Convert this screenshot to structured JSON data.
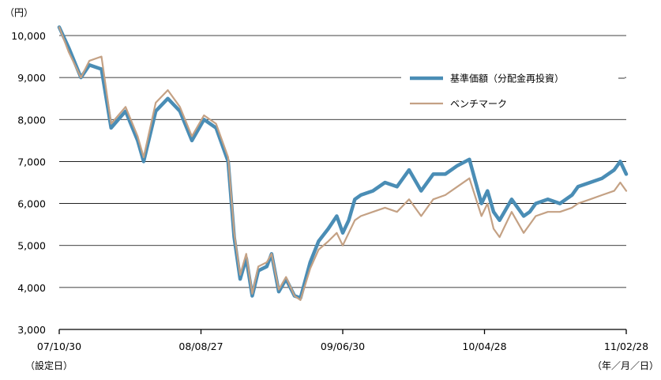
{
  "chart_data": {
    "type": "line",
    "y_unit": "（円）",
    "x_unit": "（年／月／日）",
    "x_tick_sublabel": "（設定日）",
    "ylim": [
      3000,
      10000
    ],
    "y_ticks": [
      {
        "value": 3000,
        "label": "3,000"
      },
      {
        "value": 4000,
        "label": "4,000"
      },
      {
        "value": 5000,
        "label": "5,000"
      },
      {
        "value": 6000,
        "label": "6,000"
      },
      {
        "value": 7000,
        "label": "7,000"
      },
      {
        "value": 8000,
        "label": "8,000"
      },
      {
        "value": 9000,
        "label": "9,000"
      },
      {
        "value": 10000,
        "label": "10,000"
      }
    ],
    "grid": "horizontal",
    "legend_position": "top-right",
    "x_ticks": [
      "07/10/30",
      "08/08/27",
      "09/06/30",
      "10/04/28",
      "11/02/28"
    ],
    "series": [
      {
        "name": "基準価額（分配金再投資）",
        "color": "#4a8db5",
        "points": [
          [
            0,
            10200
          ],
          [
            0.8,
            9700
          ],
          [
            1.8,
            9000
          ],
          [
            2.5,
            9300
          ],
          [
            3.5,
            9200
          ],
          [
            4.3,
            7800
          ],
          [
            5.5,
            8200
          ],
          [
            6.5,
            7500
          ],
          [
            7.0,
            7000
          ],
          [
            8.0,
            8200
          ],
          [
            9.0,
            8500
          ],
          [
            10.0,
            8200
          ],
          [
            11.0,
            7500
          ],
          [
            12.0,
            8000
          ],
          [
            13.0,
            7800
          ],
          [
            14.0,
            7000
          ],
          [
            14.5,
            5200
          ],
          [
            15.0,
            4200
          ],
          [
            15.5,
            4700
          ],
          [
            16.0,
            3800
          ],
          [
            16.5,
            4400
          ],
          [
            17.2,
            4500
          ],
          [
            17.6,
            4800
          ],
          [
            18.2,
            3900
          ],
          [
            18.8,
            4200
          ],
          [
            19.5,
            3800
          ],
          [
            20.0,
            3750
          ],
          [
            20.8,
            4600
          ],
          [
            21.5,
            5100
          ],
          [
            22.3,
            5400
          ],
          [
            23.0,
            5700
          ],
          [
            23.5,
            5300
          ],
          [
            24.0,
            5600
          ],
          [
            24.5,
            6100
          ],
          [
            25.0,
            6200
          ],
          [
            26.0,
            6300
          ],
          [
            27.0,
            6500
          ],
          [
            28.0,
            6400
          ],
          [
            29.0,
            6800
          ],
          [
            30.0,
            6300
          ],
          [
            31.0,
            6700
          ],
          [
            32.0,
            6700
          ],
          [
            33.0,
            6900
          ],
          [
            34.0,
            7050
          ],
          [
            35.0,
            6000
          ],
          [
            35.5,
            6300
          ],
          [
            36.0,
            5800
          ],
          [
            36.5,
            5600
          ],
          [
            37.5,
            6100
          ],
          [
            38.5,
            5700
          ],
          [
            39.0,
            5800
          ],
          [
            39.5,
            6000
          ],
          [
            40.5,
            6100
          ],
          [
            41.5,
            6000
          ],
          [
            42.5,
            6200
          ],
          [
            43.0,
            6400
          ],
          [
            44.0,
            6500
          ],
          [
            45.0,
            6600
          ],
          [
            46.0,
            6800
          ],
          [
            46.5,
            7000
          ],
          [
            47.0,
            6700
          ]
        ]
      },
      {
        "name": "ベンチマーク",
        "color": "#c4a184",
        "points": [
          [
            0,
            10200
          ],
          [
            0.8,
            9600
          ],
          [
            1.8,
            9000
          ],
          [
            2.5,
            9400
          ],
          [
            3.5,
            9500
          ],
          [
            4.3,
            7900
          ],
          [
            5.5,
            8300
          ],
          [
            6.5,
            7600
          ],
          [
            7.0,
            7100
          ],
          [
            8.0,
            8400
          ],
          [
            9.0,
            8700
          ],
          [
            10.0,
            8300
          ],
          [
            11.0,
            7600
          ],
          [
            12.0,
            8100
          ],
          [
            13.0,
            7900
          ],
          [
            14.0,
            7100
          ],
          [
            14.5,
            5300
          ],
          [
            15.0,
            4300
          ],
          [
            15.5,
            4800
          ],
          [
            16.0,
            3850
          ],
          [
            16.5,
            4500
          ],
          [
            17.2,
            4600
          ],
          [
            17.6,
            4800
          ],
          [
            18.2,
            3950
          ],
          [
            18.8,
            4250
          ],
          [
            19.5,
            3800
          ],
          [
            20.0,
            3700
          ],
          [
            20.8,
            4450
          ],
          [
            21.5,
            4900
          ],
          [
            22.3,
            5100
          ],
          [
            23.0,
            5300
          ],
          [
            23.5,
            5000
          ],
          [
            24.0,
            5300
          ],
          [
            24.5,
            5600
          ],
          [
            25.0,
            5700
          ],
          [
            26.0,
            5800
          ],
          [
            27.0,
            5900
          ],
          [
            28.0,
            5800
          ],
          [
            29.0,
            6100
          ],
          [
            30.0,
            5700
          ],
          [
            31.0,
            6100
          ],
          [
            32.0,
            6200
          ],
          [
            33.0,
            6400
          ],
          [
            34.0,
            6600
          ],
          [
            35.0,
            5700
          ],
          [
            35.5,
            6000
          ],
          [
            36.0,
            5400
          ],
          [
            36.5,
            5200
          ],
          [
            37.5,
            5800
          ],
          [
            38.5,
            5300
          ],
          [
            39.0,
            5500
          ],
          [
            39.5,
            5700
          ],
          [
            40.5,
            5800
          ],
          [
            41.5,
            5800
          ],
          [
            42.5,
            5900
          ],
          [
            43.0,
            6000
          ],
          [
            44.0,
            6100
          ],
          [
            45.0,
            6200
          ],
          [
            46.0,
            6300
          ],
          [
            46.5,
            6500
          ],
          [
            47.0,
            6300
          ]
        ]
      }
    ]
  }
}
